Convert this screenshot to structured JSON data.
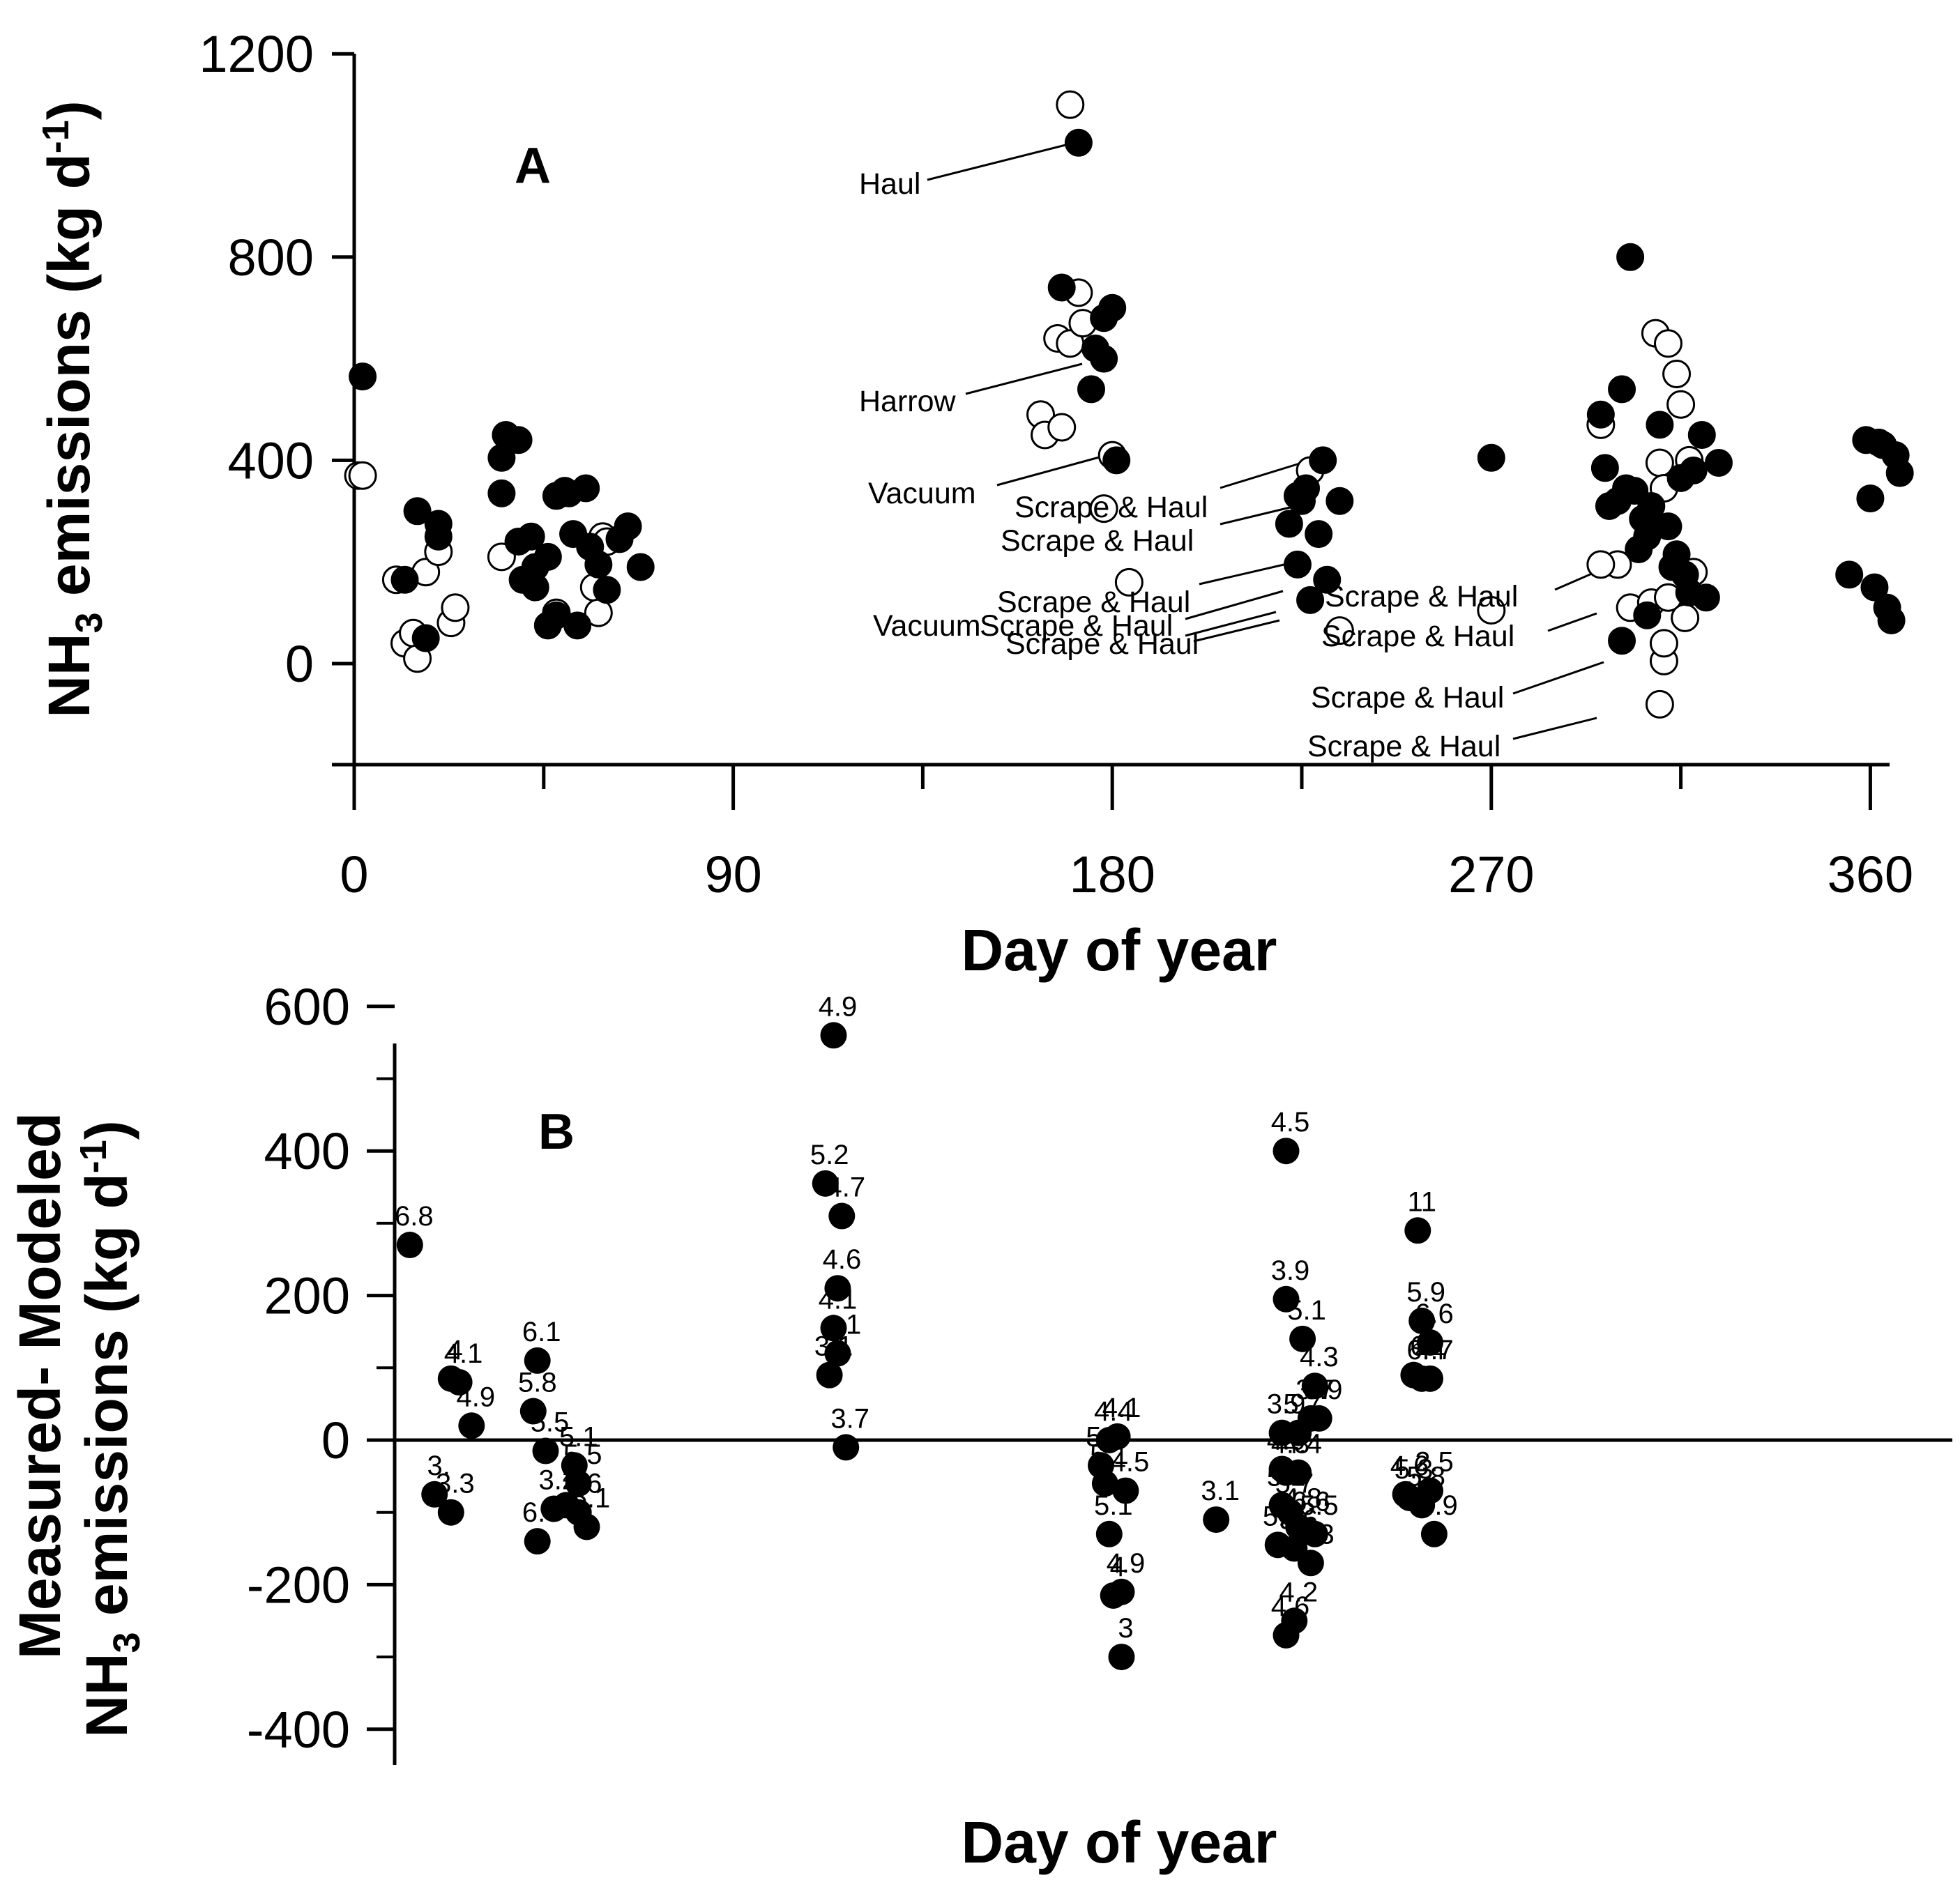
{
  "chart_data": [
    {
      "panel_label": "A",
      "type": "scatter",
      "xlabel": "Day of year",
      "ylabel": "NH3 emissions (kg d-1)",
      "ylabel_parts": [
        "NH",
        "3",
        " emissions (kg d",
        "-1",
        ")"
      ],
      "xlim": [
        0,
        368
      ],
      "ylim": [
        -200,
        1200
      ],
      "xticks": [
        0,
        90,
        180,
        270,
        360
      ],
      "xtick_labels": [
        "0",
        "90",
        "180",
        "270",
        "360"
      ],
      "yticks": [
        0,
        400,
        800,
        1200
      ],
      "ytick_labels": [
        "0",
        "400",
        "800",
        "1200"
      ],
      "series": [
        {
          "name": "filled",
          "points": [
            [
              2,
              565
            ],
            [
              12,
              165
            ],
            [
              15,
              300
            ],
            [
              17,
              50
            ],
            [
              20,
              275
            ],
            [
              20,
              250
            ],
            [
              35,
              405
            ],
            [
              35,
              335
            ],
            [
              36,
              450
            ],
            [
              39,
              440
            ],
            [
              39,
              240
            ],
            [
              40,
              165
            ],
            [
              42,
              250
            ],
            [
              43,
              190
            ],
            [
              43,
              150
            ],
            [
              46,
              210
            ],
            [
              46,
              75
            ],
            [
              48,
              95
            ],
            [
              48,
              330
            ],
            [
              50,
              340
            ],
            [
              51,
              335
            ],
            [
              52,
              255
            ],
            [
              53,
              75
            ],
            [
              55,
              345
            ],
            [
              56,
              230
            ],
            [
              58,
              195
            ],
            [
              60,
              145
            ],
            [
              63,
              245
            ],
            [
              65,
              270
            ],
            [
              68,
              190
            ],
            [
              168,
              740
            ],
            [
              172,
              1025
            ],
            [
              175,
              540
            ],
            [
              176,
              620
            ],
            [
              178,
              680
            ],
            [
              178,
              600
            ],
            [
              180,
              700
            ],
            [
              181,
              400
            ],
            [
              222,
              275
            ],
            [
              224,
              195
            ],
            [
              224,
              330
            ],
            [
              225,
              320
            ],
            [
              226,
              345
            ],
            [
              227,
              125
            ],
            [
              229,
              255
            ],
            [
              230,
              400
            ],
            [
              231,
              165
            ],
            [
              234,
              320
            ],
            [
              270,
              405
            ],
            [
              296,
              490
            ],
            [
              297,
              385
            ],
            [
              298,
              310
            ],
            [
              300,
              320
            ],
            [
              301,
              45
            ],
            [
              301,
              540
            ],
            [
              302,
              345
            ],
            [
              303,
              800
            ],
            [
              304,
              340
            ],
            [
              305,
              225
            ],
            [
              306,
              285
            ],
            [
              307,
              95
            ],
            [
              307,
              250
            ],
            [
              308,
              310
            ],
            [
              310,
              470
            ],
            [
              312,
              270
            ],
            [
              313,
              190
            ],
            [
              314,
              215
            ],
            [
              315,
              365
            ],
            [
              316,
              175
            ],
            [
              317,
              140
            ],
            [
              318,
              380
            ],
            [
              320,
              450
            ],
            [
              321,
              130
            ],
            [
              324,
              395
            ],
            [
              355,
              175
            ],
            [
              359,
              440
            ],
            [
              360,
              325
            ],
            [
              361,
              150
            ],
            [
              362,
              435
            ],
            [
              363,
              430
            ],
            [
              364,
              110
            ],
            [
              365,
              85
            ],
            [
              366,
              410
            ],
            [
              367,
              375
            ]
          ]
        },
        {
          "name": "open",
          "points": [
            [
              1,
              370
            ],
            [
              2,
              370
            ],
            [
              10,
              165
            ],
            [
              12,
              40
            ],
            [
              14,
              60
            ],
            [
              15,
              10
            ],
            [
              17,
              180
            ],
            [
              20,
              220
            ],
            [
              23,
              80
            ],
            [
              24,
              110
            ],
            [
              35,
              210
            ],
            [
              48,
              100
            ],
            [
              57,
              150
            ],
            [
              58,
              100
            ],
            [
              59,
              250
            ],
            [
              60,
              240
            ],
            [
              163,
              490
            ],
            [
              164,
              450
            ],
            [
              167,
              640
            ],
            [
              168,
              465
            ],
            [
              170,
              630
            ],
            [
              170,
              1100
            ],
            [
              172,
              730
            ],
            [
              173,
              670
            ],
            [
              180,
              410
            ],
            [
              178,
              305
            ],
            [
              184,
              160
            ],
            [
              227,
              380
            ],
            [
              234,
              65
            ],
            [
              270,
              105
            ],
            [
              296,
              470
            ],
            [
              300,
              195
            ],
            [
              303,
              110
            ],
            [
              308,
              120
            ],
            [
              309,
              650
            ],
            [
              310,
              395
            ],
            [
              311,
              345
            ],
            [
              312,
              130
            ],
            [
              312,
              630
            ],
            [
              314,
              570
            ],
            [
              315,
              510
            ],
            [
              316,
              90
            ],
            [
              317,
              400
            ],
            [
              318,
              180
            ],
            [
              296,
              195
            ],
            [
              311,
              5
            ],
            [
              310,
              -80
            ],
            [
              311,
              40
            ]
          ]
        }
      ],
      "annotations": [
        "Haul",
        "Harrow",
        "Vacuum",
        "Scrape & Haul",
        "Scrape & Haul",
        "Scrape & Haul",
        "Vacuum",
        "Scrape & Haul",
        "Scrape & Haul",
        "Scrape & Haul",
        "Scrape & Haul",
        "Scrape & Haul",
        "Scrape & Haul"
      ]
    },
    {
      "panel_label": "B",
      "type": "scatter",
      "xlabel": "Day of year",
      "ylabel_line1": "Measured- Modeled",
      "ylabel_line2_parts": [
        "NH",
        "3",
        " emissions (kg d",
        "-1",
        ")"
      ],
      "ylim": [
        -400,
        600
      ],
      "yticks": [
        -400,
        -200,
        0,
        200,
        400,
        600
      ],
      "ytick_labels": [
        "-400",
        "-200",
        "0",
        "200",
        "400",
        "600"
      ],
      "points": [
        {
          "x": 2,
          "y": 270,
          "label": "6.8"
        },
        {
          "x": 12,
          "y": 85,
          "label": "4"
        },
        {
          "x": 14,
          "y": 80,
          "label": "4.1"
        },
        {
          "x": 17,
          "y": 20,
          "label": "4.9"
        },
        {
          "x": 8,
          "y": -75,
          "label": "3."
        },
        {
          "x": 12,
          "y": -100,
          "label": "3.3"
        },
        {
          "x": 33,
          "y": 110,
          "label": "6.1"
        },
        {
          "x": 32,
          "y": 40,
          "label": "5.8"
        },
        {
          "x": 35,
          "y": -15,
          "label": "5.5"
        },
        {
          "x": 42,
          "y": -35,
          "label": "5.1"
        },
        {
          "x": 43,
          "y": -60,
          "label": "5.5"
        },
        {
          "x": 37,
          "y": -95,
          "label": "3.2"
        },
        {
          "x": 40,
          "y": -90,
          "label": "4"
        },
        {
          "x": 43,
          "y": -100,
          "label": "4.6"
        },
        {
          "x": 45,
          "y": -120,
          "label": "5.1"
        },
        {
          "x": 33,
          "y": -140,
          "label": "6.0"
        },
        {
          "x": 105,
          "y": 560,
          "label": "4.9"
        },
        {
          "x": 103,
          "y": 355,
          "label": "5.2"
        },
        {
          "x": 107,
          "y": 310,
          "label": "4.7"
        },
        {
          "x": 106,
          "y": 210,
          "label": "4.6"
        },
        {
          "x": 105,
          "y": 155,
          "label": "4.1"
        },
        {
          "x": 106,
          "y": 120,
          "label": "4.1"
        },
        {
          "x": 104,
          "y": 90,
          "label": "3.1"
        },
        {
          "x": 108,
          "y": -10,
          "label": "3.7"
        },
        {
          "x": 170,
          "y": -35,
          "label": "5.2"
        },
        {
          "x": 171,
          "y": -60,
          "label": "5.1"
        },
        {
          "x": 172,
          "y": 0,
          "label": "4.4"
        },
        {
          "x": 174,
          "y": 5,
          "label": "4.1"
        },
        {
          "x": 176,
          "y": -70,
          "label": "4.5"
        },
        {
          "x": 172,
          "y": -130,
          "label": "5.1"
        },
        {
          "x": 173,
          "y": -215,
          "label": "4"
        },
        {
          "x": 175,
          "y": -210,
          "label": "4.9"
        },
        {
          "x": 175,
          "y": -300,
          "label": "3"
        },
        {
          "x": 198,
          "y": -110,
          "label": "3.1"
        },
        {
          "x": 215,
          "y": 400,
          "label": "4.5"
        },
        {
          "x": 215,
          "y": 195,
          "label": "3.9"
        },
        {
          "x": 219,
          "y": 140,
          "label": "5.1"
        },
        {
          "x": 214,
          "y": 10,
          "label": "3.9"
        },
        {
          "x": 218,
          "y": 10,
          "label": "5.7"
        },
        {
          "x": 222,
          "y": 75,
          "label": "4.3"
        },
        {
          "x": 221,
          "y": 30,
          "label": "3.7"
        },
        {
          "x": 223,
          "y": 30,
          "label": "3.9"
        },
        {
          "x": 214,
          "y": -40,
          "label": "4.0"
        },
        {
          "x": 215,
          "y": -45,
          "label": "4.3"
        },
        {
          "x": 218,
          "y": -45,
          "label": "4.4"
        },
        {
          "x": 214,
          "y": -90,
          "label": "5.1"
        },
        {
          "x": 216,
          "y": -100,
          "label": "5.7"
        },
        {
          "x": 218,
          "y": -120,
          "label": "4.8"
        },
        {
          "x": 220,
          "y": -125,
          "label": "6.6"
        },
        {
          "x": 222,
          "y": -130,
          "label": "5.5"
        },
        {
          "x": 213,
          "y": -145,
          "label": "5.1"
        },
        {
          "x": 217,
          "y": -150,
          "label": "3.6"
        },
        {
          "x": 221,
          "y": -170,
          "label": "3.3"
        },
        {
          "x": 215,
          "y": -270,
          "label": "4.6"
        },
        {
          "x": 217,
          "y": -250,
          "label": "4.2"
        },
        {
          "x": 247,
          "y": 290,
          "label": "11"
        },
        {
          "x": 248,
          "y": 165,
          "label": "5.9"
        },
        {
          "x": 250,
          "y": 135,
          "label": "6.6"
        },
        {
          "x": 246,
          "y": 90,
          "label": "6"
        },
        {
          "x": 248,
          "y": 85,
          "label": "6.4"
        },
        {
          "x": 250,
          "y": 85,
          "label": "4.7"
        },
        {
          "x": 244,
          "y": -75,
          "label": "4.6"
        },
        {
          "x": 245,
          "y": -80,
          "label": "5.3"
        },
        {
          "x": 248,
          "y": -90,
          "label": "5.8"
        },
        {
          "x": 250,
          "y": -70,
          "label": "2.5"
        },
        {
          "x": 251,
          "y": -130,
          "label": "5.9"
        }
      ]
    }
  ]
}
